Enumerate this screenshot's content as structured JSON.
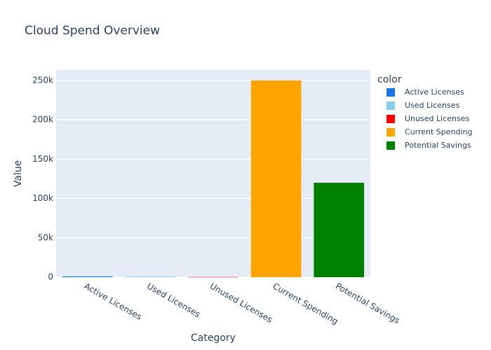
{
  "chart_data": {
    "type": "bar",
    "title": "Cloud Spend Overview",
    "x_label": "Category",
    "y_label": "Value",
    "legend_title": "color",
    "categories": [
      "Active Licenses",
      "Used Licenses",
      "Unused Licenses",
      "Current Spending",
      "Potential Savings"
    ],
    "values": [
      1000,
      750,
      250,
      250000,
      120000
    ],
    "colors": [
      "#1a73e8",
      "#87ceeb",
      "#ff0000",
      "#ffa500",
      "#008000"
    ],
    "ylim": [
      0,
      263300
    ],
    "yticks": [
      0,
      {
        "value": 50000,
        "label": "50k"
      },
      {
        "value": 100000,
        "label": "100k"
      },
      {
        "value": 150000,
        "label": "150k"
      },
      {
        "value": 200000,
        "label": "200k"
      },
      {
        "value": 250000,
        "label": "250k"
      }
    ],
    "grid": true
  }
}
